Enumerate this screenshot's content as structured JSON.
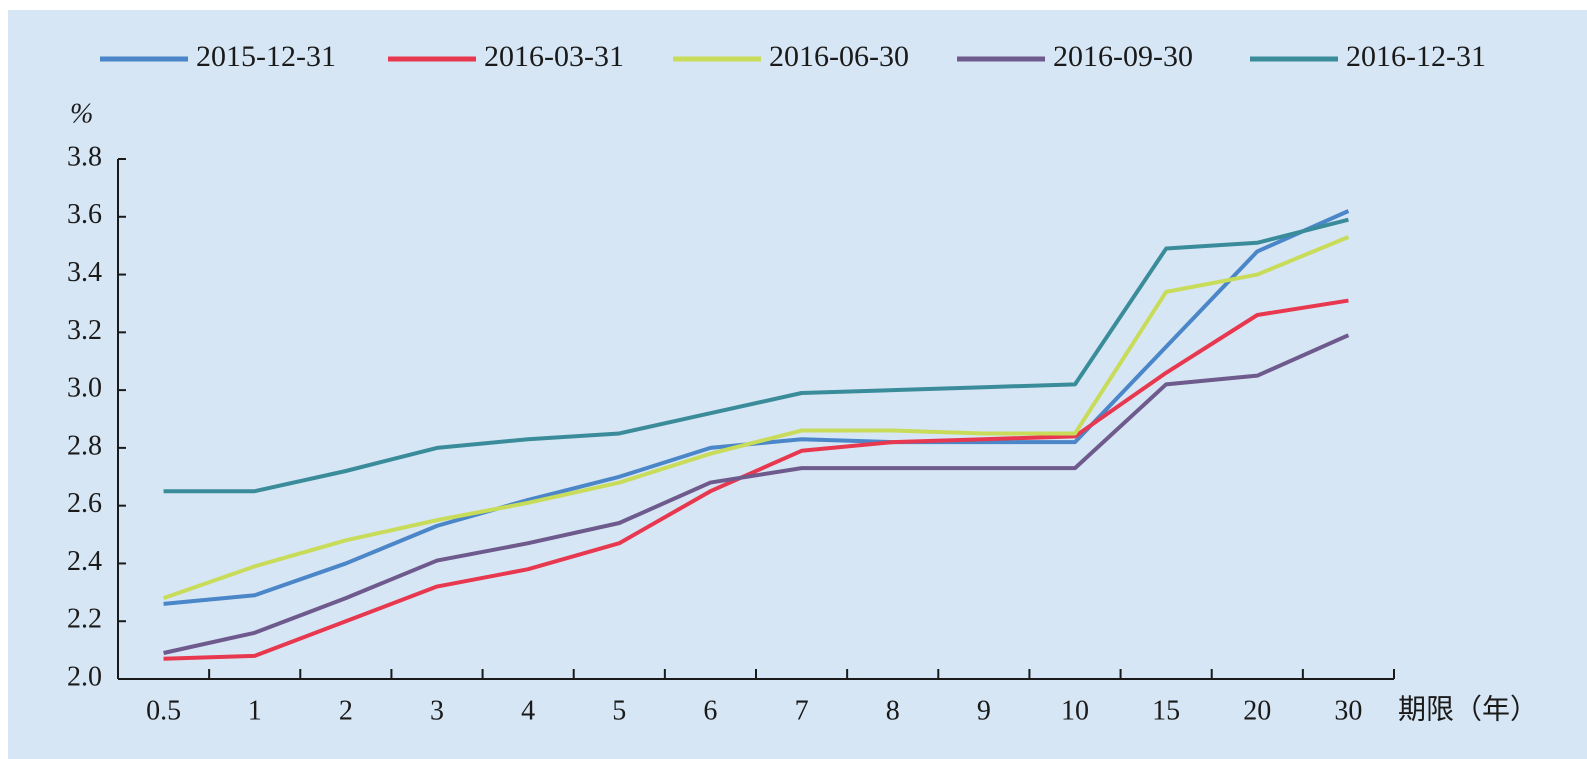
{
  "chart_data": {
    "type": "line",
    "y_label": "%",
    "x_label": "期限（年）",
    "categories": [
      "0.5",
      "1",
      "2",
      "3",
      "4",
      "5",
      "6",
      "7",
      "8",
      "9",
      "10",
      "15",
      "20",
      "30"
    ],
    "series": [
      {
        "name": "2015-12-31",
        "color": "#4a86c8",
        "values": [
          2.26,
          2.29,
          2.4,
          2.53,
          2.62,
          2.7,
          2.8,
          2.83,
          2.82,
          2.82,
          2.82,
          3.15,
          3.48,
          3.62
        ]
      },
      {
        "name": "2016-03-31",
        "color": "#e8384f",
        "values": [
          2.07,
          2.08,
          2.2,
          2.32,
          2.38,
          2.47,
          2.65,
          2.79,
          2.82,
          2.83,
          2.84,
          3.06,
          3.26,
          3.31
        ]
      },
      {
        "name": "2016-06-30",
        "color": "#c8dc5a",
        "values": [
          2.28,
          2.39,
          2.48,
          2.55,
          2.61,
          2.68,
          2.78,
          2.86,
          2.86,
          2.85,
          2.85,
          3.34,
          3.4,
          3.53
        ]
      },
      {
        "name": "2016-09-30",
        "color": "#6e5a8c",
        "values": [
          2.09,
          2.16,
          2.28,
          2.41,
          2.47,
          2.54,
          2.68,
          2.73,
          2.73,
          2.73,
          2.73,
          3.02,
          3.05,
          3.19
        ]
      },
      {
        "name": "2016-12-31",
        "color": "#3a8c9a",
        "values": [
          2.65,
          2.65,
          2.72,
          2.8,
          2.83,
          2.85,
          2.92,
          2.99,
          3.0,
          3.01,
          3.02,
          3.49,
          3.51,
          3.59
        ]
      }
    ],
    "ylim": [
      2.0,
      3.8
    ],
    "yticks": [
      {
        "value": 2.0,
        "label": "2.0"
      },
      2.2,
      2.4,
      2.6,
      2.8,
      {
        "value": 3.0,
        "label": "3.0"
      },
      3.2,
      3.4,
      3.6,
      3.8
    ],
    "legend": "top"
  }
}
